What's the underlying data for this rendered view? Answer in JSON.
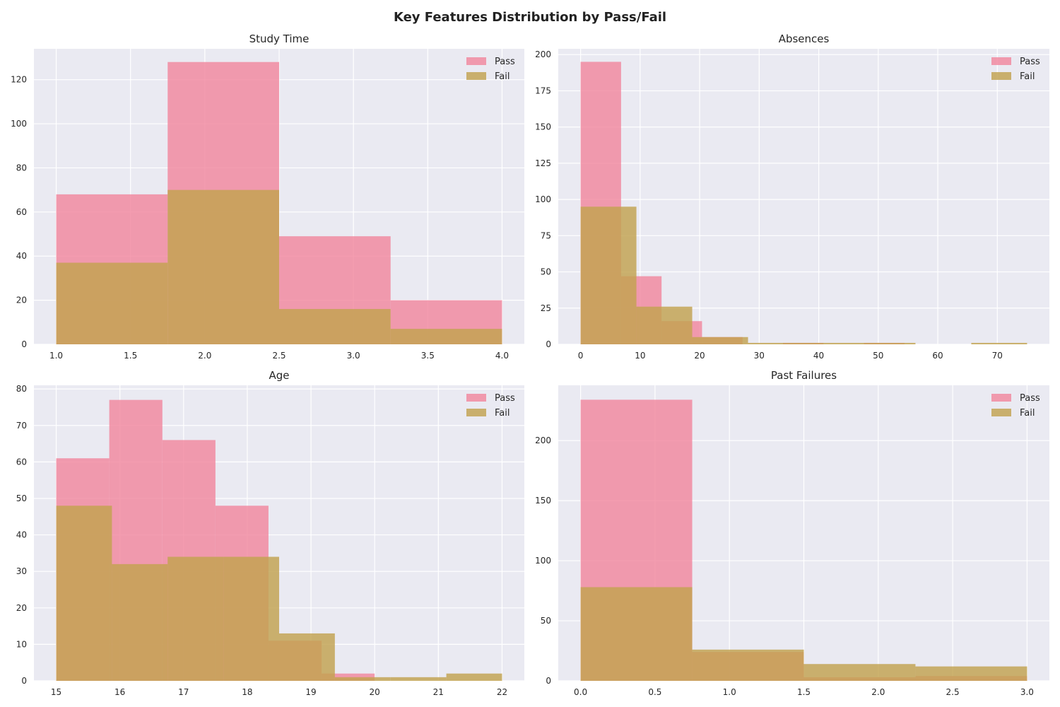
{
  "suptitle": "Key Features Distribution by Pass/Fail",
  "colors": {
    "pass": "#f1829a",
    "fail": "#c2a24f",
    "overlap": "#c9944f",
    "background": "#eaeaf2",
    "grid": "#ffffff"
  },
  "chart_data": [
    {
      "type": "bar",
      "title": "Study Time",
      "legend": [
        "Pass",
        "Fail"
      ],
      "legend_position": "top-right",
      "grid": true,
      "xlim": [
        0.85,
        4.15
      ],
      "ylim": [
        0,
        134
      ],
      "xticks": [
        "1.0",
        "1.5",
        "2.0",
        "2.5",
        "3.0",
        "3.5",
        "4.0"
      ],
      "yticks": [
        "0",
        "20",
        "40",
        "60",
        "80",
        "100",
        "120"
      ],
      "series": [
        {
          "name": "Pass",
          "bins": [
            [
              1.0,
              1.75,
              68
            ],
            [
              1.75,
              2.5,
              128
            ],
            [
              2.5,
              3.25,
              49
            ],
            [
              3.25,
              4.0,
              20
            ]
          ]
        },
        {
          "name": "Fail",
          "bins": [
            [
              1.0,
              1.75,
              37
            ],
            [
              1.75,
              2.5,
              70
            ],
            [
              2.5,
              3.25,
              16
            ],
            [
              3.25,
              4.0,
              7
            ]
          ]
        }
      ]
    },
    {
      "type": "bar",
      "title": "Absences",
      "legend": [
        "Pass",
        "Fail"
      ],
      "legend_position": "top-right",
      "grid": true,
      "xlim": [
        -3.75,
        78.75
      ],
      "ylim": [
        0,
        204
      ],
      "xticks": [
        "0",
        "10",
        "20",
        "30",
        "40",
        "50",
        "60",
        "70"
      ],
      "yticks": [
        "0",
        "25",
        "50",
        "75",
        "100",
        "125",
        "150",
        "175",
        "200"
      ],
      "series": [
        {
          "name": "Pass",
          "bins": [
            [
              0,
              6.8,
              195
            ],
            [
              6.8,
              13.6,
              47
            ],
            [
              13.6,
              20.4,
              16
            ],
            [
              20.4,
              27.2,
              5
            ],
            [
              27.2,
              34.0,
              0
            ],
            [
              34.0,
              40.8,
              1
            ],
            [
              40.8,
              47.6,
              0
            ],
            [
              47.6,
              54.4,
              1
            ],
            [
              54.4,
              61.2,
              0
            ],
            [
              61.2,
              68.0,
              0
            ]
          ]
        },
        {
          "name": "Fail",
          "bins": [
            [
              0,
              9.375,
              95
            ],
            [
              9.375,
              18.75,
              26
            ],
            [
              18.75,
              28.125,
              5
            ],
            [
              28.125,
              37.5,
              1
            ],
            [
              37.5,
              46.875,
              1
            ],
            [
              46.875,
              56.25,
              1
            ],
            [
              56.25,
              65.625,
              0
            ],
            [
              65.625,
              75.0,
              1
            ]
          ]
        }
      ]
    },
    {
      "type": "bar",
      "title": "Age",
      "legend": [
        "Pass",
        "Fail"
      ],
      "legend_position": "top-right",
      "grid": true,
      "xlim": [
        14.65,
        22.35
      ],
      "ylim": [
        0,
        81
      ],
      "xticks": [
        "15",
        "16",
        "17",
        "18",
        "19",
        "20",
        "21",
        "22"
      ],
      "yticks": [
        "0",
        "10",
        "20",
        "30",
        "40",
        "50",
        "60",
        "70",
        "80"
      ],
      "series": [
        {
          "name": "Pass",
          "bins": [
            [
              15.0,
              15.833,
              61
            ],
            [
              15.833,
              16.667,
              77
            ],
            [
              16.667,
              17.5,
              66
            ],
            [
              17.5,
              18.333,
              48
            ],
            [
              18.333,
              19.167,
              11
            ],
            [
              19.167,
              20.0,
              2
            ]
          ]
        },
        {
          "name": "Fail",
          "bins": [
            [
              15.0,
              15.875,
              48
            ],
            [
              15.875,
              16.75,
              32
            ],
            [
              16.75,
              17.625,
              34
            ],
            [
              17.625,
              18.5,
              34
            ],
            [
              18.5,
              19.375,
              13
            ],
            [
              19.375,
              20.25,
              1
            ],
            [
              20.25,
              21.125,
              1
            ],
            [
              21.125,
              22.0,
              2
            ]
          ]
        }
      ]
    },
    {
      "type": "bar",
      "title": "Past Failures",
      "legend": [
        "Pass",
        "Fail"
      ],
      "legend_position": "top-right",
      "grid": true,
      "xlim": [
        -0.15,
        3.15
      ],
      "ylim": [
        0,
        246
      ],
      "xticks": [
        "0.0",
        "0.5",
        "1.0",
        "1.5",
        "2.0",
        "2.5",
        "3.0"
      ],
      "yticks": [
        "0",
        "50",
        "100",
        "150",
        "200"
      ],
      "series": [
        {
          "name": "Pass",
          "bins": [
            [
              0.0,
              0.75,
              234
            ],
            [
              0.75,
              1.5,
              24
            ],
            [
              1.5,
              2.25,
              3
            ],
            [
              2.25,
              3.0,
              4
            ]
          ]
        },
        {
          "name": "Fail",
          "bins": [
            [
              0.0,
              0.75,
              78
            ],
            [
              0.75,
              1.5,
              26
            ],
            [
              1.5,
              2.25,
              14
            ],
            [
              2.25,
              3.0,
              12
            ]
          ]
        }
      ]
    }
  ]
}
